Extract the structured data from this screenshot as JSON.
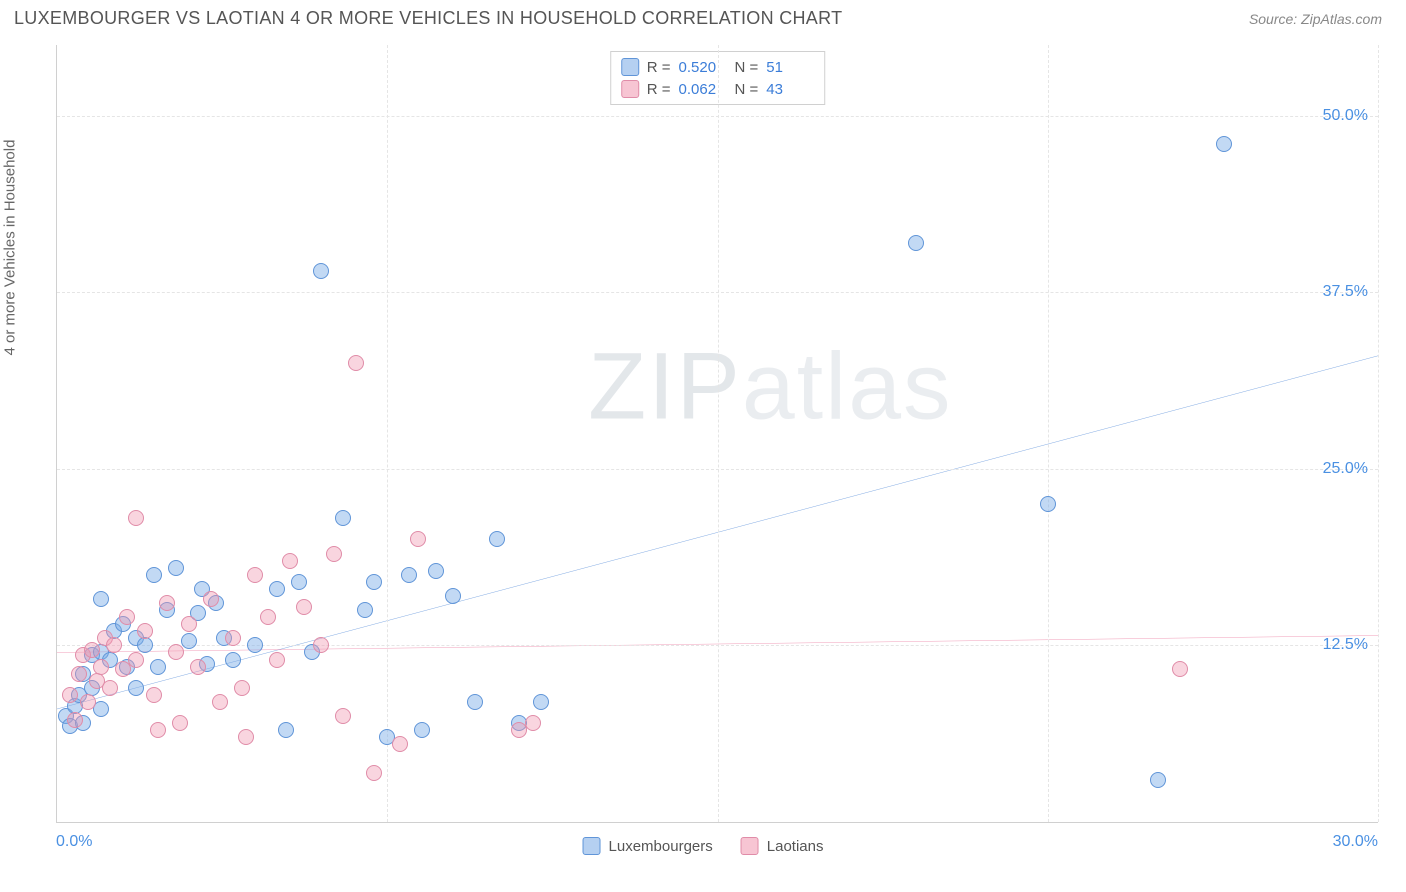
{
  "header": {
    "title": "LUXEMBOURGER VS LAOTIAN 4 OR MORE VEHICLES IN HOUSEHOLD CORRELATION CHART",
    "source_prefix": "Source: ",
    "source_name": "ZipAtlas.com"
  },
  "watermark": {
    "part1": "ZIP",
    "part2": "atlas"
  },
  "chart": {
    "type": "scatter",
    "y_axis_label": "4 or more Vehicles in Household",
    "xlim": [
      0,
      30
    ],
    "ylim": [
      0,
      55
    ],
    "y_ticks": [
      12.5,
      25.0,
      37.5,
      50.0
    ],
    "y_tick_labels": [
      "12.5%",
      "25.0%",
      "37.5%",
      "50.0%"
    ],
    "x_ticks": [
      0,
      7.5,
      15,
      22.5,
      30
    ],
    "x_corner_labels": [
      "0.0%",
      "30.0%"
    ],
    "grid_color": "#e5e5e5",
    "background_color": "#ffffff",
    "series": [
      {
        "key": "a",
        "label": "Luxembourgers",
        "color_fill": "rgba(120,170,230,0.45)",
        "color_stroke": "#6095d8",
        "R_label": "R =",
        "R": "0.520",
        "N_label": "N =",
        "N": "51",
        "trend": {
          "x1": 0,
          "y1": 8.0,
          "x2": 30,
          "y2": 33.0,
          "stroke": "#2f72d0",
          "width": 2
        },
        "points": [
          [
            0.2,
            7.5
          ],
          [
            0.3,
            6.8
          ],
          [
            0.4,
            8.2
          ],
          [
            0.5,
            9.0
          ],
          [
            0.6,
            10.5
          ],
          [
            0.6,
            7.0
          ],
          [
            0.8,
            11.8
          ],
          [
            0.8,
            9.5
          ],
          [
            1.0,
            12.0
          ],
          [
            1.0,
            8.0
          ],
          [
            1.0,
            15.8
          ],
          [
            1.2,
            11.5
          ],
          [
            1.3,
            13.5
          ],
          [
            1.5,
            14.0
          ],
          [
            1.6,
            11.0
          ],
          [
            1.8,
            13.0
          ],
          [
            1.8,
            9.5
          ],
          [
            2.0,
            12.5
          ],
          [
            2.2,
            17.5
          ],
          [
            2.3,
            11.0
          ],
          [
            2.5,
            15.0
          ],
          [
            2.7,
            18.0
          ],
          [
            3.0,
            12.8
          ],
          [
            3.2,
            14.8
          ],
          [
            3.3,
            16.5
          ],
          [
            3.4,
            11.2
          ],
          [
            3.6,
            15.5
          ],
          [
            3.8,
            13.0
          ],
          [
            4.0,
            11.5
          ],
          [
            4.5,
            12.5
          ],
          [
            5.0,
            16.5
          ],
          [
            5.2,
            6.5
          ],
          [
            5.5,
            17.0
          ],
          [
            5.8,
            12.0
          ],
          [
            6.0,
            39.0
          ],
          [
            6.5,
            21.5
          ],
          [
            7.0,
            15.0
          ],
          [
            7.2,
            17.0
          ],
          [
            7.5,
            6.0
          ],
          [
            8.0,
            17.5
          ],
          [
            8.3,
            6.5
          ],
          [
            8.6,
            17.8
          ],
          [
            9.0,
            16.0
          ],
          [
            9.5,
            8.5
          ],
          [
            10.0,
            20.0
          ],
          [
            10.5,
            7.0
          ],
          [
            11.0,
            8.5
          ],
          [
            19.5,
            41.0
          ],
          [
            22.5,
            22.5
          ],
          [
            25.0,
            3.0
          ],
          [
            26.5,
            48.0
          ]
        ]
      },
      {
        "key": "b",
        "label": "Laotians",
        "color_fill": "rgba(240,150,175,0.40)",
        "color_stroke": "#e08ca8",
        "R_label": "R =",
        "R": "0.062",
        "N_label": "N =",
        "N": "43",
        "trend": {
          "x1": 0,
          "y1": 12.0,
          "x2": 30,
          "y2": 13.2,
          "stroke": "#e85d8a",
          "width": 2
        },
        "points": [
          [
            0.3,
            9.0
          ],
          [
            0.4,
            7.2
          ],
          [
            0.5,
            10.5
          ],
          [
            0.6,
            11.8
          ],
          [
            0.7,
            8.5
          ],
          [
            0.8,
            12.2
          ],
          [
            0.9,
            10.0
          ],
          [
            1.0,
            11.0
          ],
          [
            1.1,
            13.0
          ],
          [
            1.2,
            9.5
          ],
          [
            1.3,
            12.5
          ],
          [
            1.5,
            10.8
          ],
          [
            1.6,
            14.5
          ],
          [
            1.8,
            11.5
          ],
          [
            1.8,
            21.5
          ],
          [
            2.0,
            13.5
          ],
          [
            2.2,
            9.0
          ],
          [
            2.3,
            6.5
          ],
          [
            2.5,
            15.5
          ],
          [
            2.7,
            12.0
          ],
          [
            2.8,
            7.0
          ],
          [
            3.0,
            14.0
          ],
          [
            3.2,
            11.0
          ],
          [
            3.5,
            15.8
          ],
          [
            3.7,
            8.5
          ],
          [
            4.0,
            13.0
          ],
          [
            4.2,
            9.5
          ],
          [
            4.3,
            6.0
          ],
          [
            4.5,
            17.5
          ],
          [
            4.8,
            14.5
          ],
          [
            5.0,
            11.5
          ],
          [
            5.3,
            18.5
          ],
          [
            5.6,
            15.2
          ],
          [
            6.0,
            12.5
          ],
          [
            6.3,
            19.0
          ],
          [
            6.5,
            7.5
          ],
          [
            6.8,
            32.5
          ],
          [
            7.2,
            3.5
          ],
          [
            7.8,
            5.5
          ],
          [
            8.2,
            20.0
          ],
          [
            10.5,
            6.5
          ],
          [
            10.8,
            7.0
          ],
          [
            25.5,
            10.8
          ]
        ]
      }
    ]
  }
}
